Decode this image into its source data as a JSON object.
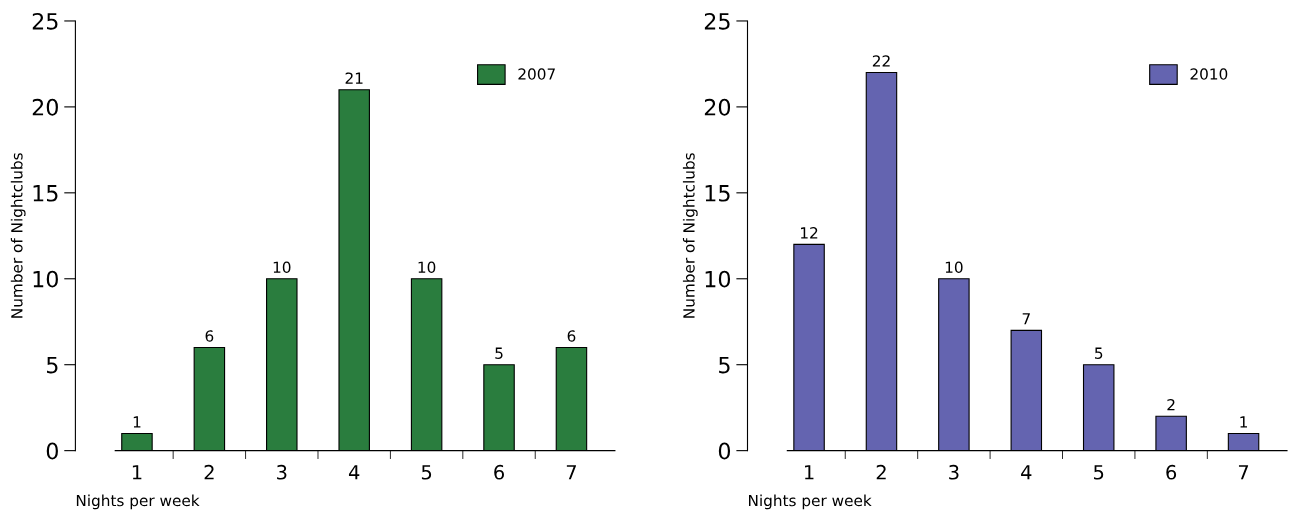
{
  "chart_data": [
    {
      "type": "bar",
      "xlabel": "Nights per week",
      "ylabel": "Number of Nightclubs",
      "categories": [
        "1",
        "2",
        "3",
        "4",
        "5",
        "6",
        "7"
      ],
      "series": [
        {
          "name": "2007",
          "color": "#2a7d3e",
          "values": [
            1,
            6,
            10,
            21,
            10,
            5,
            6
          ]
        }
      ],
      "ylim": [
        0,
        25
      ],
      "yticks": [
        0,
        5,
        10,
        15,
        20,
        25
      ],
      "data_labels": true,
      "legend": "top right",
      "grid": false
    },
    {
      "type": "bar",
      "xlabel": "Nights per week",
      "ylabel": "Number of Nightclubs",
      "categories": [
        "1",
        "2",
        "3",
        "4",
        "5",
        "6",
        "7"
      ],
      "series": [
        {
          "name": "2010",
          "color": "#6464b0",
          "values": [
            12,
            22,
            10,
            7,
            5,
            2,
            1
          ]
        }
      ],
      "ylim": [
        0,
        25
      ],
      "yticks": [
        0,
        5,
        10,
        15,
        20,
        25
      ],
      "data_labels": true,
      "legend": "top right",
      "grid": false
    }
  ]
}
